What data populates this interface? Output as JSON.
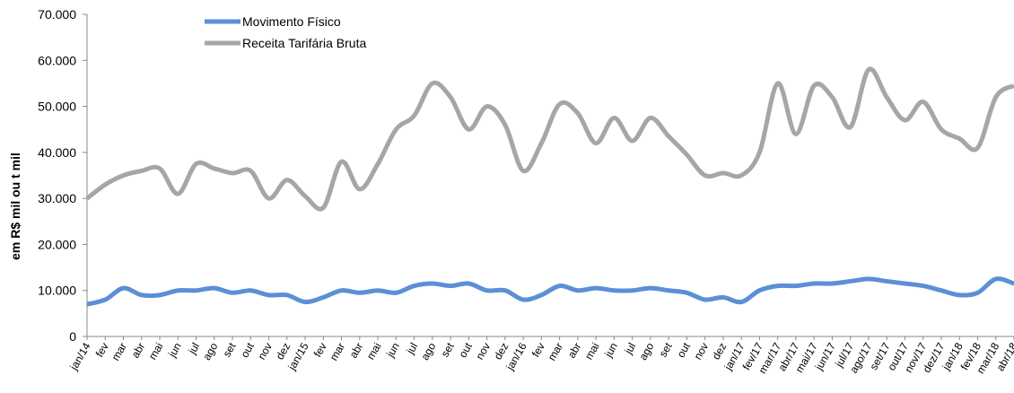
{
  "chart_data": {
    "type": "line",
    "y_axis_label": "em R$ mil ou t mil",
    "categories": [
      "jan/14",
      "fev",
      "mar",
      "abr",
      "mai",
      "jun",
      "jul",
      "ago",
      "set",
      "out",
      "nov",
      "dez",
      "jan/15",
      "fev",
      "mar",
      "abr",
      "mai",
      "jun",
      "jul",
      "ago",
      "set",
      "out",
      "nov",
      "dez",
      "jan/16",
      "fev",
      "mar",
      "abr",
      "mai",
      "jun",
      "jul",
      "ago",
      "set",
      "out",
      "nov",
      "dez",
      "jan/17",
      "fev/17",
      "mar/17",
      "abr/17",
      "mai/17",
      "jun/17",
      "jul/17",
      "ago/17",
      "set/17",
      "out/17",
      "nov/17",
      "dez/17",
      "jan/18",
      "fev/18",
      "mar/18",
      "abr/18"
    ],
    "series": [
      {
        "name": "Movimento Físico",
        "color": "#5b8fd6",
        "values": [
          7000,
          8000,
          10500,
          9000,
          9000,
          10000,
          10000,
          10500,
          9500,
          10000,
          9000,
          9000,
          7500,
          8500,
          10000,
          9500,
          10000,
          9500,
          11000,
          11500,
          11000,
          11500,
          10000,
          10000,
          8000,
          9000,
          11000,
          10000,
          10500,
          10000,
          10000,
          10500,
          10000,
          9500,
          8000,
          8500,
          7500,
          10000,
          11000,
          11000,
          11500,
          11500,
          12000,
          12500,
          12000,
          11500,
          11000,
          10000,
          9000,
          9500,
          12500,
          11500
        ]
      },
      {
        "name": "Receita Tarifária Bruta",
        "color": "#a6a6a6",
        "values": [
          30000,
          33000,
          35000,
          36000,
          36500,
          31000,
          37500,
          36500,
          35500,
          36000,
          30000,
          34000,
          30500,
          28000,
          38000,
          32000,
          37500,
          45000,
          48000,
          55000,
          52000,
          45000,
          50000,
          46000,
          36000,
          42000,
          50500,
          48500,
          42000,
          47500,
          42500,
          47500,
          43500,
          39500,
          35000,
          35500,
          35000,
          40000,
          55000,
          44000,
          54500,
          52000,
          45500,
          58000,
          52000,
          47000,
          51000,
          45000,
          43000,
          41000,
          52000,
          54500
        ]
      }
    ],
    "ylim": [
      0,
      70000
    ],
    "yticks": [
      0,
      {
        "value": 10000,
        "label": "10.000"
      },
      {
        "value": 20000,
        "label": "20.000"
      },
      {
        "value": 30000,
        "label": "30.000"
      },
      {
        "value": 40000,
        "label": "40.000"
      },
      {
        "value": 50000,
        "label": "50.000"
      },
      {
        "value": 60000,
        "label": "60.000"
      },
      {
        "value": 70000,
        "label": "70.000"
      }
    ]
  }
}
